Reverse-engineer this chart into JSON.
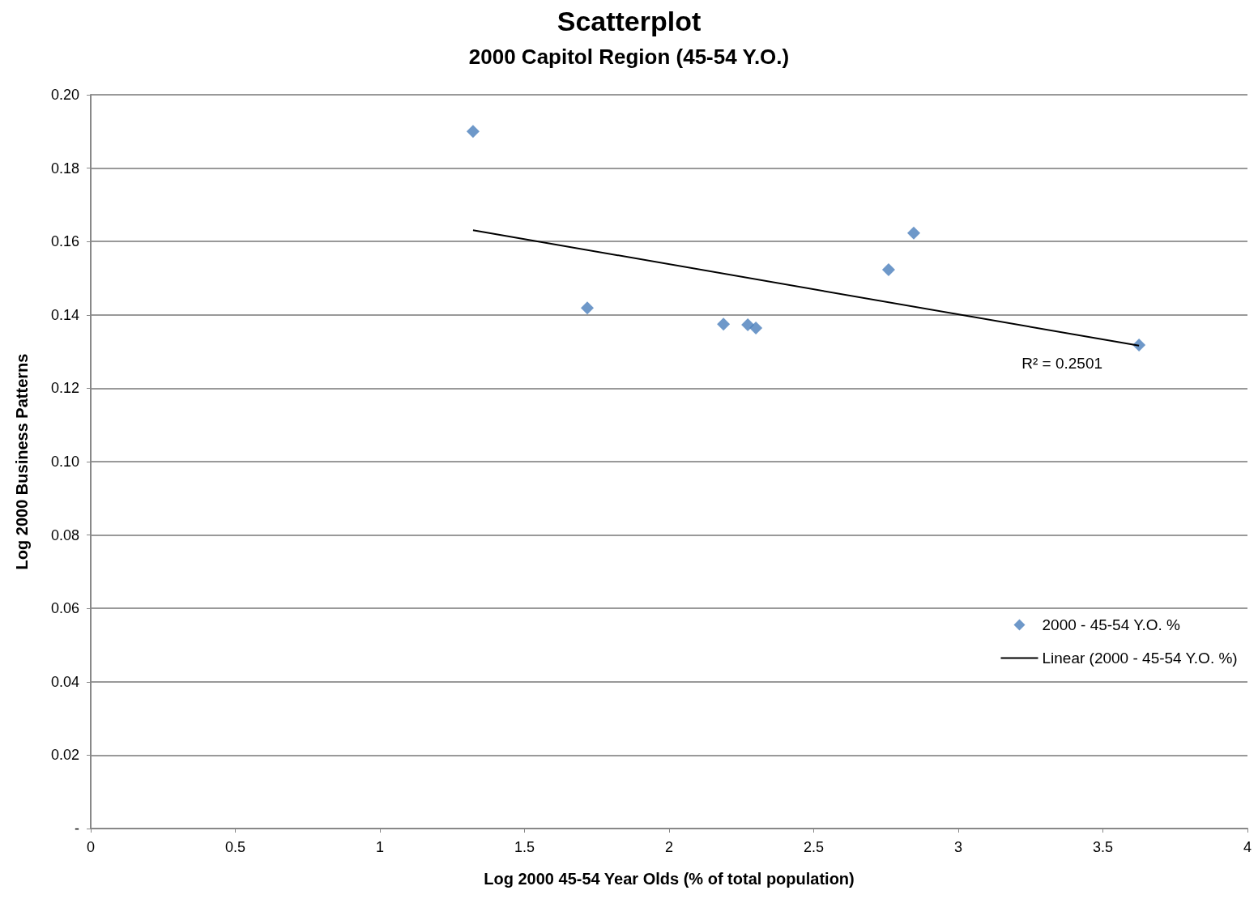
{
  "chart_data": {
    "type": "scatter",
    "title": "Scatterplot",
    "subtitle": "2000 Capitol Region (45-54 Y.O.)",
    "xlabel": "Log 2000 45-54 Year Olds (% of total population)",
    "ylabel": "Log 2000 Business Patterns",
    "xlim": [
      0,
      4
    ],
    "xticks": [
      0,
      0.5,
      1,
      1.5,
      2,
      2.5,
      3,
      3.5,
      4
    ],
    "ylim": [
      0,
      0.2
    ],
    "yticks": [
      {
        "value": 0,
        "label": "-"
      },
      {
        "value": 0.02,
        "label": "0.02"
      },
      {
        "value": 0.04,
        "label": "0.04"
      },
      {
        "value": 0.06,
        "label": "0.06"
      },
      {
        "value": 0.08,
        "label": "0.08"
      },
      {
        "value": 0.1,
        "label": "0.10"
      },
      {
        "value": 0.12,
        "label": "0.12"
      },
      {
        "value": 0.14,
        "label": "0.14"
      },
      {
        "value": 0.16,
        "label": "0.16"
      },
      {
        "value": 0.18,
        "label": "0.18"
      },
      {
        "value": 0.2,
        "label": "0.20"
      }
    ],
    "grid": "y",
    "legend": "bottom right",
    "series": [
      {
        "name": "2000 - 45-54 Y.O. %",
        "marker": "diamond",
        "color": "#4a7ebb",
        "x": [
          1.322,
          1.717,
          2.188,
          2.272,
          2.3,
          2.759,
          2.846,
          3.625
        ],
        "values": [
          0.19,
          0.1419,
          0.1375,
          0.1373,
          0.1364,
          0.1523,
          0.1623,
          0.1318
        ]
      },
      {
        "name": "Linear (2000 - 45-54 Y.O. %)",
        "type": "line",
        "color": "#000000",
        "x": [
          1.322,
          3.625
        ],
        "values": [
          0.1631,
          0.1316
        ]
      }
    ],
    "annotations": [
      "R² = 0.2501"
    ]
  }
}
